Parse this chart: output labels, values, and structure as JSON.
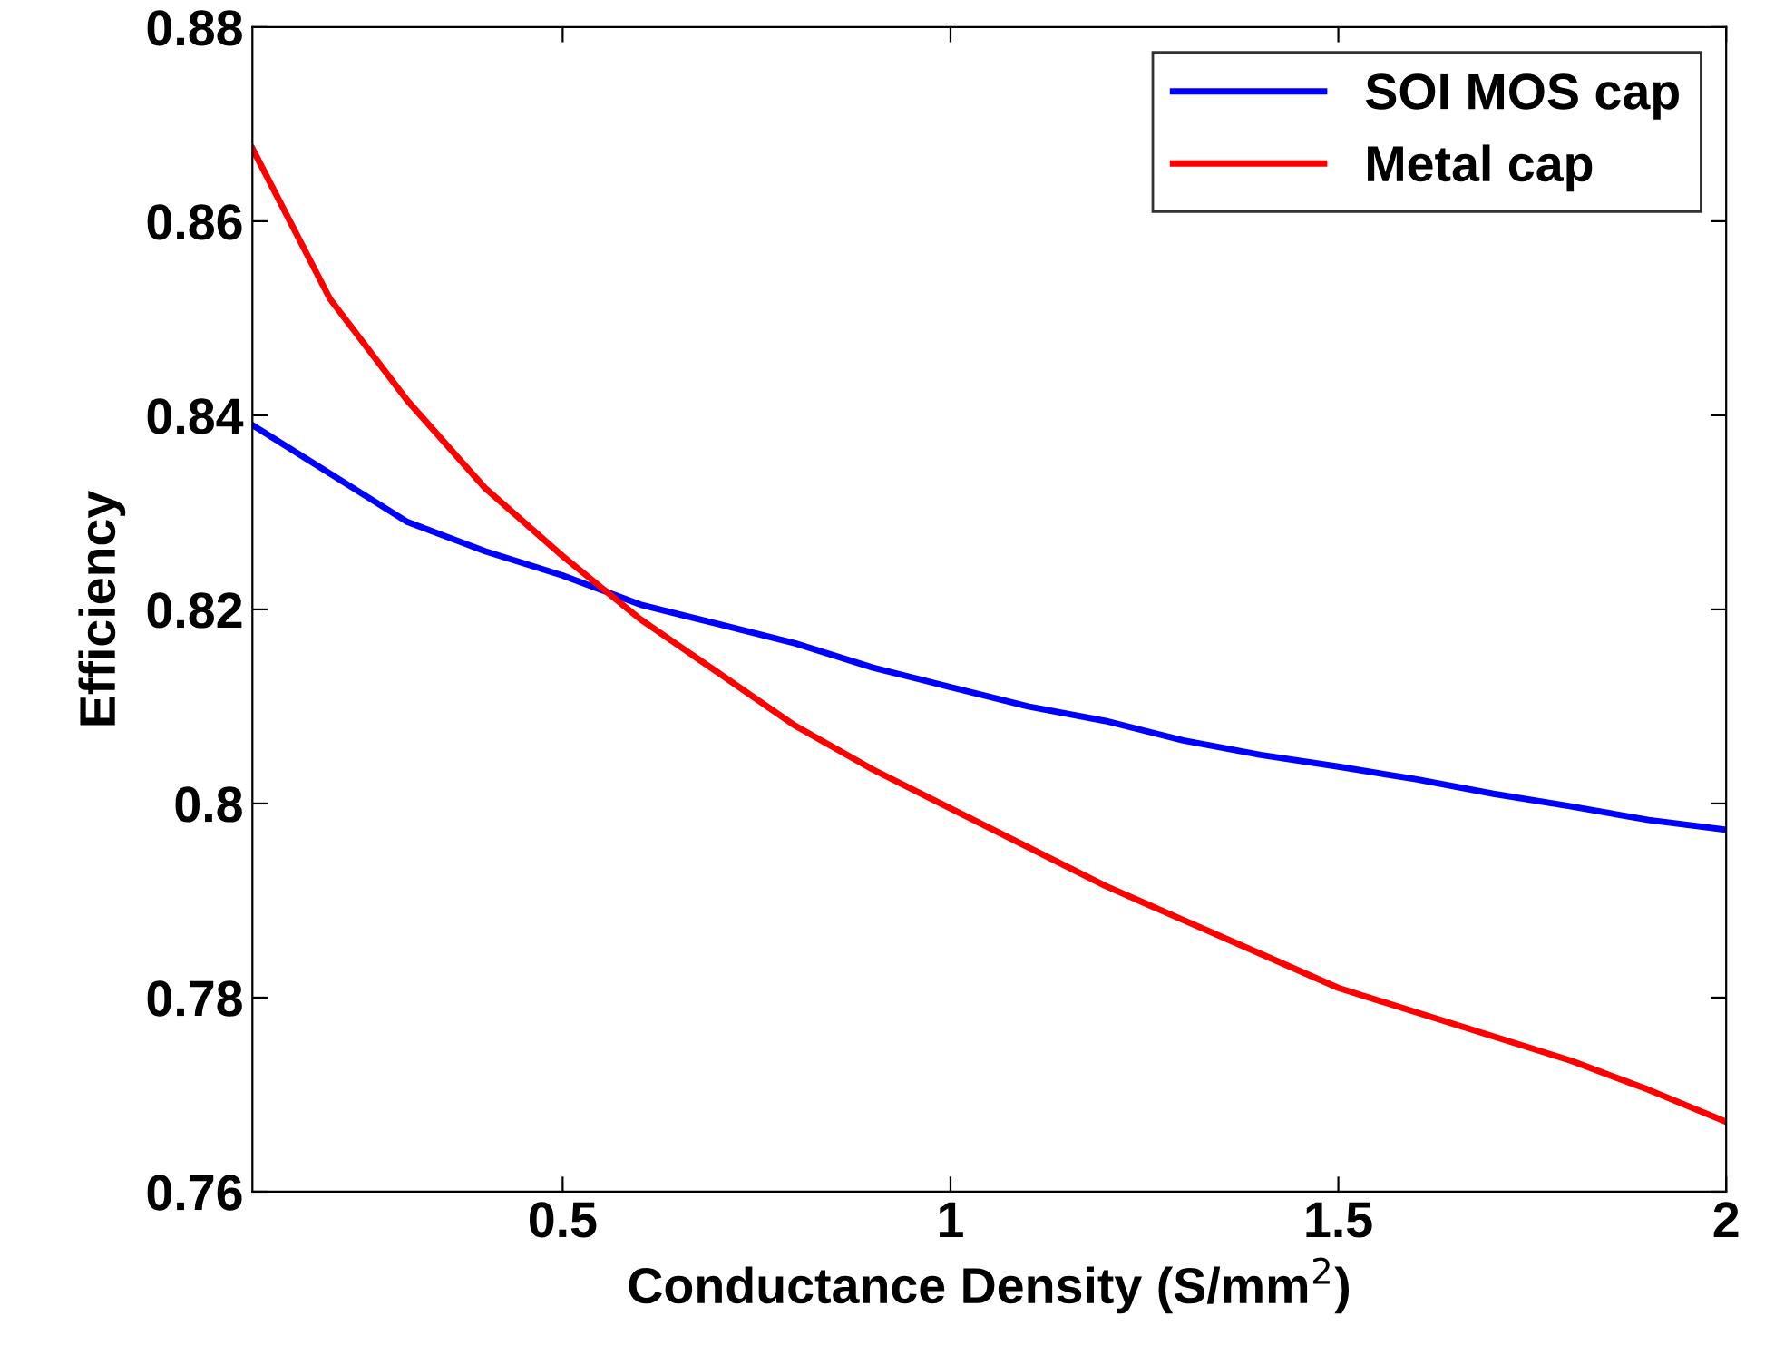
{
  "chart_data": {
    "type": "line",
    "xlabel": "Conductance Density (S/mm$^{2}$)",
    "ylabel": "Efficiency",
    "x": [
      0.1,
      0.2,
      0.3,
      0.4,
      0.5,
      0.6,
      0.7,
      0.8,
      0.9,
      1.0,
      1.1,
      1.2,
      1.3,
      1.4,
      1.5,
      1.6,
      1.7,
      1.8,
      1.9,
      2.0
    ],
    "series": [
      {
        "name": "SOI MOS cap",
        "color": "#0000ff",
        "values": [
          0.839,
          0.834,
          0.829,
          0.826,
          0.8235,
          0.8205,
          0.8185,
          0.8165,
          0.814,
          0.812,
          0.81,
          0.8085,
          0.8065,
          0.805,
          0.8038,
          0.8025,
          0.801,
          0.7997,
          0.7983,
          0.7973
        ]
      },
      {
        "name": "Metal cap",
        "color": "#ff0000",
        "values": [
          0.8675,
          0.852,
          0.8415,
          0.8325,
          0.8255,
          0.819,
          0.8135,
          0.808,
          0.8035,
          0.7995,
          0.7955,
          0.7915,
          0.788,
          0.7845,
          0.781,
          0.7785,
          0.776,
          0.7735,
          0.7705,
          0.7672
        ]
      }
    ],
    "xlim": [
      0.1,
      2
    ],
    "ylim": [
      0.76,
      0.88
    ],
    "xticks": [
      0.5,
      1,
      1.5,
      2
    ],
    "yticks": [
      0.76,
      0.78,
      0.8,
      0.82,
      0.84,
      0.86,
      0.88
    ],
    "grid": false,
    "legend": "top right",
    "marker": "none",
    "line_style": "solid"
  }
}
